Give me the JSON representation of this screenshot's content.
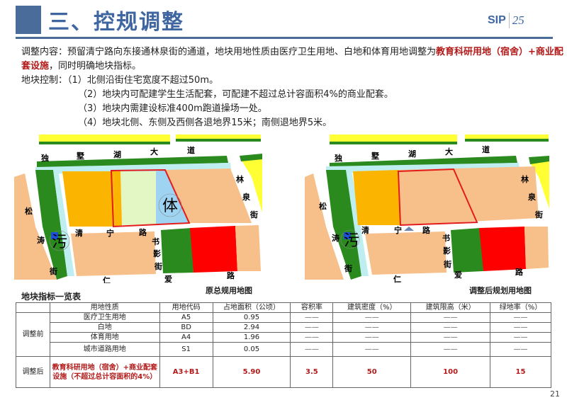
{
  "header": {
    "title": "三、控规调整",
    "logo_text": "SIP",
    "logo_mark": "25"
  },
  "content": {
    "intro_prefix": "调整内容：预留清宁路向东接通林泉街的通道，地块用地性质由医疗卫生用地、白地和体育用地调整为",
    "intro_highlight": "教育科研用地（宿舍）+商业配套设施",
    "intro_suffix": "，同时明确地块指标。",
    "control_label": "地块控制：",
    "controls": [
      "（1）北侧沿街住宅宽度不超过50m。",
      "（2）地块内可配建学生生活配套，可配建不超过总计容面积4%的商业配套。",
      "（3）地块内需建设标准400m跑道操场一处。",
      "（4）地块北侧、东侧及西侧各退地界15米；南侧退地界5米。"
    ]
  },
  "maps": {
    "before_caption": "原总规用地图",
    "after_caption": "调整后规划用地图",
    "labels": {
      "road1": [
        "独",
        "墅",
        "湖",
        "大",
        "道"
      ],
      "road2": [
        "林",
        "泉",
        "街"
      ],
      "road3": [
        "清",
        "宁",
        "路"
      ],
      "road4": [
        "书",
        "影",
        "街"
      ],
      "road5": [
        "松",
        "涛",
        "街"
      ],
      "road6": [
        "仁",
        "爱",
        "路"
      ],
      "sport": "体",
      "sewage": "污"
    }
  },
  "table": {
    "title": "地块指标一览表",
    "headers": [
      "",
      "用地性质",
      "用地代码",
      "占地面积（公顷）",
      "容积率",
      "建筑密度（%）",
      "建筑限高（米）",
      "绿地率（%）"
    ],
    "before_label": "调整前",
    "before_rows": [
      [
        "医疗卫生用地",
        "A5",
        "0.95",
        "——",
        "——",
        "——",
        "——"
      ],
      [
        "白地",
        "BD",
        "2.94",
        "——",
        "——",
        "——",
        "——"
      ],
      [
        "体育用地",
        "A4",
        "1.96",
        "——",
        "——",
        "——",
        "——"
      ],
      [
        "城市道路用地",
        "S1",
        "0.05",
        "——",
        "——",
        "——",
        "——"
      ]
    ],
    "after_label": "调整后",
    "after_row": [
      "教育科研用地（宿舍）+商业配套设施（不超过总计容面积的4%）",
      "A3+B1",
      "5.90",
      "3.5",
      "50",
      "100",
      "15"
    ]
  },
  "page_number": "21",
  "colors": {
    "accent": "#4a6c9b",
    "highlight": "#b21a1a",
    "orange": "#fbb400",
    "tan": "#f7c08a",
    "green": "#2a8a1e",
    "red": "#ff0000",
    "light_green": "#e2f7c4",
    "sport_blue": "#9ed4f2",
    "yellow": "#ffff33",
    "water": "#bfeef0"
  }
}
